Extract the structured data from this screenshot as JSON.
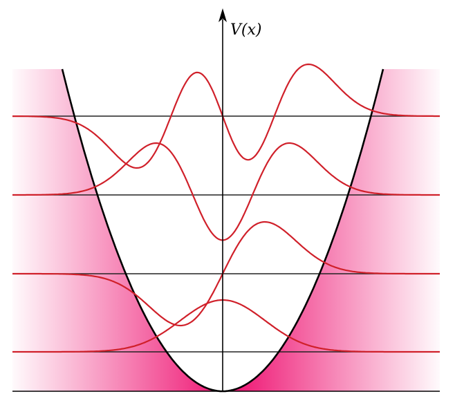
{
  "axis": {
    "y_label": "V(x)"
  },
  "colors": {
    "background": "#ffffff",
    "forbidden_region": "#ee1070",
    "wavefunction": "#d0202a",
    "potential_curve": "#000000",
    "energy_levels": "#222222",
    "axis": "#000000"
  },
  "levels": [
    {
      "n": 0
    },
    {
      "n": 1
    },
    {
      "n": 2
    },
    {
      "n": 3
    }
  ]
}
